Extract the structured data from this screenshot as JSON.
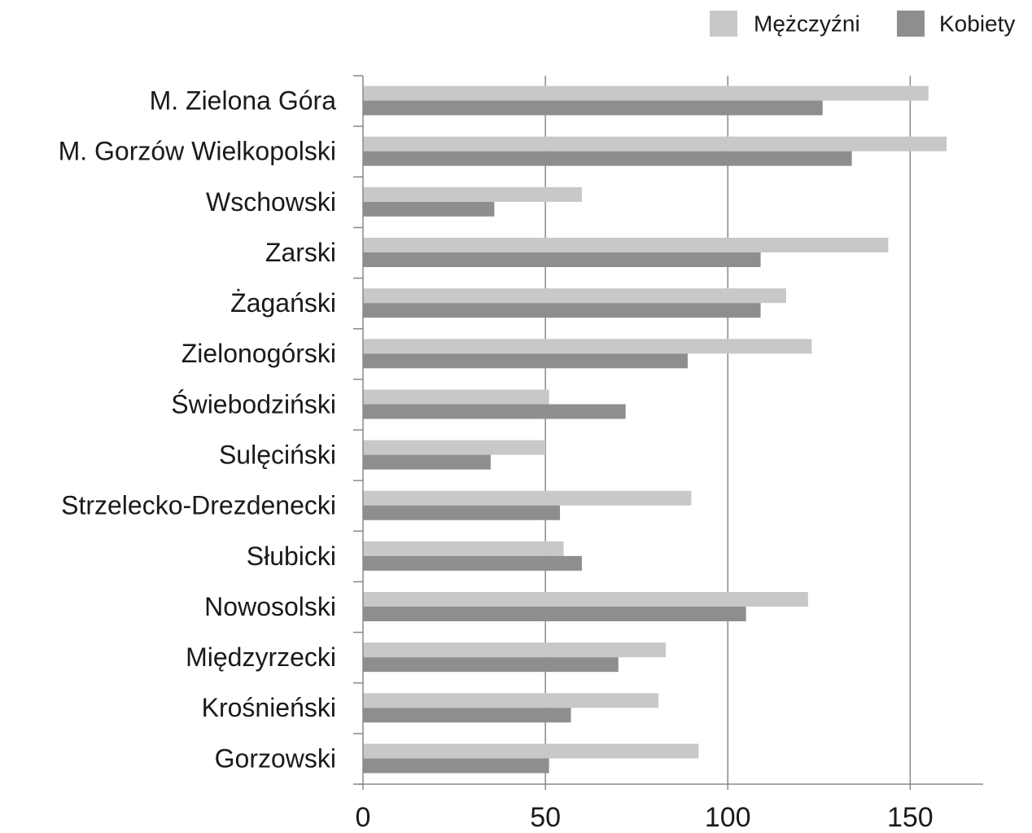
{
  "chart_data": {
    "type": "bar",
    "orientation": "horizontal",
    "categories": [
      "M. Zielona Góra",
      "M. Gorzów Wielkopolski",
      "Wschowski",
      "Zarski",
      "Żagański",
      "Zielonogórski",
      "Świebodziński",
      "Sulęciński",
      "Strzelecko-Drezdenecki",
      "Słubicki",
      "Nowosolski",
      "Międzyrzecki",
      "Krośnieński",
      "Gorzowski"
    ],
    "series": [
      {
        "name": "Mężczyźni",
        "color": "#c8c8c8",
        "values": [
          155,
          160,
          60,
          144,
          116,
          123,
          51,
          50,
          90,
          55,
          122,
          83,
          81,
          92
        ]
      },
      {
        "name": "Kobiety",
        "color": "#8e8e8e",
        "values": [
          126,
          134,
          36,
          109,
          109,
          89,
          72,
          35,
          54,
          60,
          105,
          70,
          57,
          51
        ]
      }
    ],
    "xlim": [
      0,
      170
    ],
    "xticks": [
      0,
      50,
      100,
      150
    ],
    "grid": true,
    "legend": "top-right"
  }
}
